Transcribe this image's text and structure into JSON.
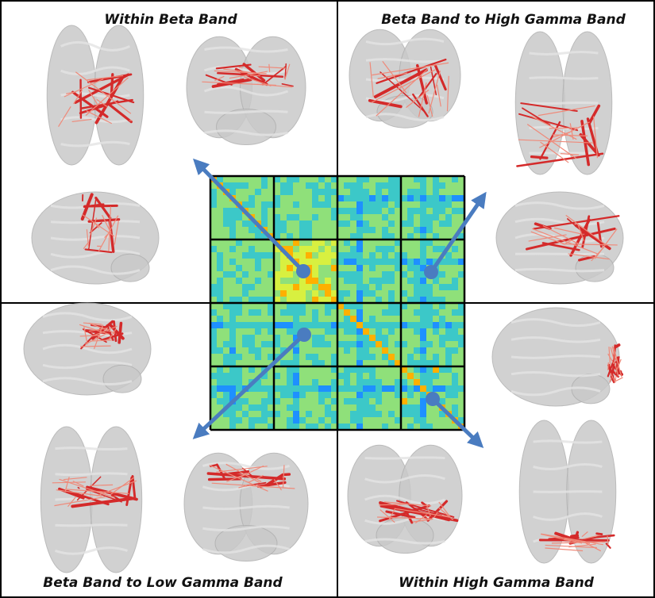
{
  "panels": [
    {
      "title": "Within Beta Band"
    },
    {
      "title": "Beta Band to High Gamma Band"
    },
    {
      "title": "Beta Band to Low Gamma Band"
    },
    {
      "title": "Within High Gamma Band"
    }
  ]
}
